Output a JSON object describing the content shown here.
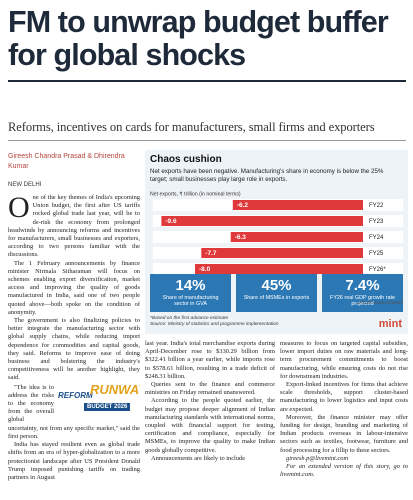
{
  "header": {
    "title": "FM to unwrap budget buffer for global shocks",
    "subtitle": "Reforms, incentives on cards for manufacturers, small firms and exporters",
    "byline": "Gireesh Chandra Prasad & Dhirendra Kumar",
    "dateline": "NEW DELHI"
  },
  "article": {
    "drop_cap": "O",
    "paragraphs": [
      "ne of the key themes of India's upcoming Union budget, the first after US tariffs rocked global trade last year, will be to de-risk the economy from prolonged headwinds by announcing reforms and incentives for manufacturers, small businesses and exporters, according to two persons familiar with the discussions.",
      "The 1 February announcements by finance minister Nirmala Sitharaman will focus on schemes enabling export diversification, market access and improving the quality of goods manufactured in India, said one of two people quoted above—both spoke on the condition of anonymity.",
      "The government is also finalizing policies to better integrate the manufacturing sector with global supply chains, while reducing import dependence for commodities and capital goods, they said. Reforms to improve ease of doing business and bolstering the industry's competitiveness will be another highlight, they said.",
      "\"The idea is to address the risks to the economy from the overall global uncertainty, not from any specific market,\" said the first person.",
      "India has stayed resilient even as global trade shifts from an era of hyper-globalization to a more protectionist landscape after US President Donald Trump imposed punishing tariffs on trading partners in August",
      "last year. India's total merchandise exports during April-December rose to $330.29 billion from $322.41 billion a year earlier, while imports rose to $578.61 billion, resulting in a trade deficit of $248.31 billion.",
      "Queries sent to the finance and commerce ministries on Friday remained unanswered.",
      "According to the people quoted earlier, the budget may propose deeper alignment of Indian manufacturing standards with international norms, coupled with financial support for testing, certification and compliance, especially for MSMEs, to improve the quality to make Indian goods globally competitive.",
      "Announcements are likely to include",
      "measures to focus on targeted capital subsidies, lower import duties on raw materials and long-term procurement commitments to boost manufacturing, while ensuring costs do not rise for downstream industries.",
      "Export-linked incentives for firms that achieve scale thresholds, support cluster-based manufacturing to lower logistics and input costs are expected.",
      "Moreover, the finance minister may offer funding for design, branding and marketing of Indian products overseas in labour-intensive sectors such as textiles, footwear, furniture and food processing for a fillip to these sectors."
    ],
    "email": "gireesh.p@livemint.com",
    "more": "For an extended version of this story, go to livemint.com."
  },
  "logo": {
    "line1": "REFORM",
    "line2": "RUNWAY",
    "line3": "BUDGET 2026"
  },
  "chart": {
    "type": "bar",
    "title": "Chaos cushion",
    "subtitle": "Net exports have been negative. Manufacturing's share in economy is below the 25% target; small businesses play large role in exports.",
    "axis_label": "Net exports, ₹ trillion (in nominal terms)",
    "categories": [
      "FY22",
      "FY23",
      "FY24",
      "FY25",
      "FY26*"
    ],
    "values": [
      -6.2,
      -9.6,
      -6.3,
      -7.7,
      -8.0
    ],
    "value_labels": [
      "-6.2",
      "-9.6",
      "-6.3",
      "-7.7",
      "-8.0"
    ],
    "color": "#e0393b",
    "xlim": [
      -10,
      0
    ],
    "stats": [
      {
        "value": "14%",
        "label": "Share of manufacturing sector in GVA"
      },
      {
        "value": "45%",
        "label": "Share of MSMEs in exports"
      },
      {
        "value": "7.4%",
        "label": "FY26 real GDP growth rate projected"
      }
    ],
    "footnote": "*Based on the first advance estimate",
    "source": "Source: Ministry of statistics and programme implementation",
    "credit": "SATISH KUMAR/MINT",
    "brand": "mint"
  }
}
